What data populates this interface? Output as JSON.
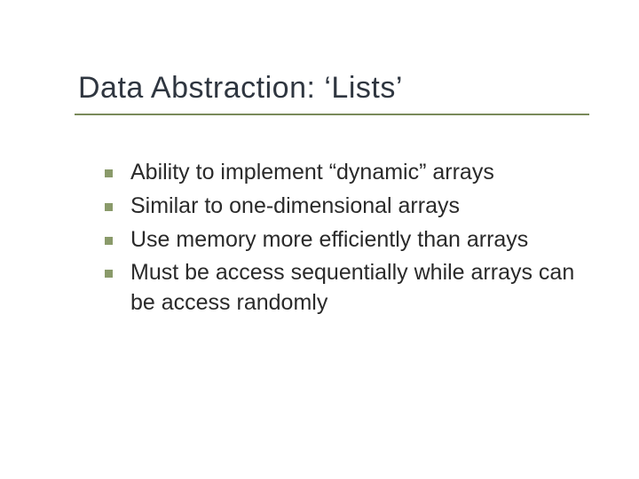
{
  "slide": {
    "title": "Data Abstraction: ‘Lists’",
    "title_color": "#2f3640",
    "title_fontsize": 34,
    "underline_color": "#7a8a5a",
    "bullet_marker_color": "#8a9a6a",
    "bullet_marker_size": 9,
    "bullet_fontsize": 25,
    "bullet_text_color": "#2a2a2a",
    "background_color": "#ffffff",
    "bullets": [
      "Ability to implement “dynamic” arrays",
      "Similar to one-dimensional arrays",
      "Use memory more efficiently than arrays",
      "Must be access sequentially while arrays can be access randomly"
    ]
  }
}
